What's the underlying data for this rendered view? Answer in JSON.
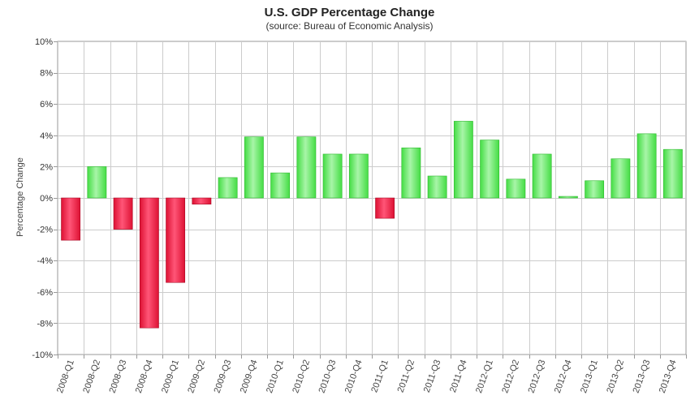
{
  "chart_data": {
    "type": "bar",
    "title": "U.S. GDP Percentage Change",
    "subtitle": "(source: Bureau of Economic Analysis)",
    "xlabel": "",
    "ylabel": "Percentage Change",
    "ylim": [
      -10,
      10
    ],
    "y_ticks": [
      10,
      8,
      6,
      4,
      2,
      0,
      -2,
      -4,
      -6,
      -8,
      -10
    ],
    "y_tick_labels": [
      "10%",
      "8%",
      "6%",
      "4%",
      "2%",
      "0%",
      "-2%",
      "-4%",
      "-6%",
      "-8%",
      "-10%"
    ],
    "grid": true,
    "legend": "none",
    "categories": [
      "2008-Q1",
      "2008-Q2",
      "2008-Q3",
      "2008-Q4",
      "2009-Q1",
      "2009-Q2",
      "2009-Q3",
      "2009-Q4",
      "2010-Q1",
      "2010-Q2",
      "2010-Q3",
      "2010-Q4",
      "2011-Q1",
      "2011-Q2",
      "2011-Q3",
      "2011-Q4",
      "2012-Q1",
      "2012-Q2",
      "2012-Q3",
      "2012-Q4",
      "2013-Q1",
      "2013-Q2",
      "2013-Q3",
      "2013-Q4"
    ],
    "values": [
      -2.7,
      2.0,
      -2.0,
      -8.3,
      -5.4,
      -0.4,
      1.3,
      3.9,
      1.6,
      3.9,
      2.8,
      2.8,
      -1.3,
      3.2,
      1.4,
      4.9,
      3.7,
      1.2,
      2.8,
      0.1,
      1.1,
      2.5,
      4.1,
      3.1
    ],
    "colors": {
      "positive": "#44dd44",
      "positive_light": "#a8f5a8",
      "negative": "#dd1133",
      "negative_light": "#ff5577",
      "grid": "#cccccc",
      "axis": "#999999"
    }
  }
}
